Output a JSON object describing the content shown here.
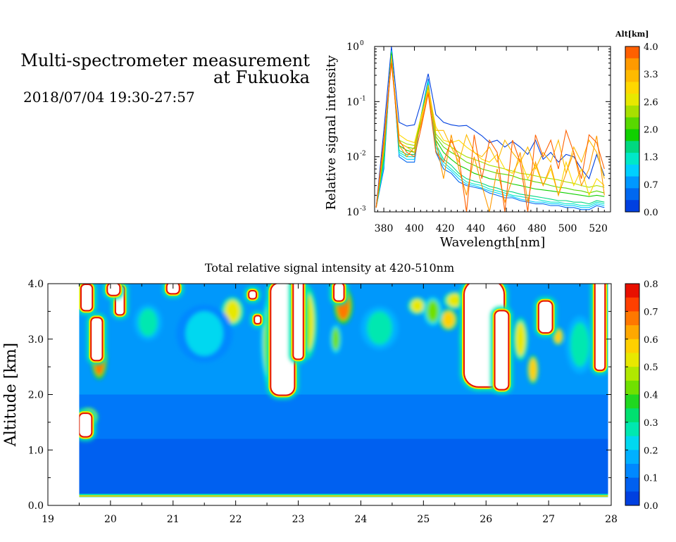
{
  "header": {
    "title_line1": "Multi-spectrometer measurement",
    "title_line2": "at Fukuoka",
    "subtitle": "2018/07/04 19:30-27:57"
  },
  "chart_data": [
    {
      "type": "line",
      "xlabel": "Wavelength[nm]",
      "ylabel": "Relative signal intensity",
      "xlim": [
        374,
        528
      ],
      "ylim": [
        0.001,
        1
      ],
      "yscale": "log",
      "x_ticks": [
        380,
        400,
        420,
        440,
        460,
        480,
        500,
        520
      ],
      "y_ticks": [
        {
          "mantissa": "10",
          "exp": "0",
          "value": 1
        },
        {
          "mantissa": "10",
          "exp": "-1",
          "value": 0.1
        },
        {
          "mantissa": "10",
          "exp": "-2",
          "value": 0.01
        },
        {
          "mantissa": "10",
          "exp": "-3",
          "value": 0.001
        }
      ],
      "colorbar": {
        "label": "Alt[km]",
        "ticks": [
          "4.0",
          "3.3",
          "2.6",
          "2.0",
          "1.3",
          "0.7",
          "0.0"
        ],
        "colors": [
          "#ff6000",
          "#ff9a00",
          "#ffba00",
          "#ffd800",
          "#e8e800",
          "#a8e000",
          "#58d800",
          "#10d000",
          "#00d880",
          "#00e8c8",
          "#00d0ff",
          "#0098ff",
          "#0068f0",
          "#0040e0"
        ]
      },
      "x": [
        375,
        380,
        385,
        390,
        395,
        400,
        404,
        409,
        414,
        419,
        424,
        429,
        434,
        439,
        444,
        449,
        454,
        459,
        464,
        469,
        474,
        479,
        484,
        489,
        494,
        499,
        504,
        509,
        514,
        519,
        524
      ],
      "series": [
        {
          "color": "#0040e0",
          "values": [
            0.0012,
            0.03,
            1.0,
            0.042,
            0.036,
            0.038,
            0.09,
            0.32,
            0.058,
            0.042,
            0.038,
            0.036,
            0.037,
            0.03,
            0.024,
            0.018,
            0.02,
            0.015,
            0.019,
            0.015,
            0.011,
            0.02,
            0.009,
            0.012,
            0.008,
            0.011,
            0.01,
            0.006,
            0.004,
            0.011,
            0.0045
          ]
        },
        {
          "color": "#0068f0",
          "values": [
            0.0012,
            0.006,
            0.85,
            0.01,
            0.008,
            0.008,
            0.05,
            0.26,
            0.012,
            0.006,
            0.005,
            0.0035,
            0.003,
            0.0028,
            0.0026,
            0.0022,
            0.002,
            0.0018,
            0.0018,
            0.0016,
            0.0015,
            0.0014,
            0.0014,
            0.0013,
            0.0013,
            0.0012,
            0.0012,
            0.0011,
            0.0011,
            0.0013,
            0.0012
          ]
        },
        {
          "color": "#00d0ff",
          "values": [
            0.0012,
            0.007,
            0.85,
            0.011,
            0.009,
            0.009,
            0.05,
            0.24,
            0.013,
            0.007,
            0.0055,
            0.004,
            0.0032,
            0.003,
            0.0027,
            0.0024,
            0.0022,
            0.002,
            0.0019,
            0.0017,
            0.0016,
            0.0015,
            0.0015,
            0.0014,
            0.0014,
            0.0013,
            0.0013,
            0.0012,
            0.0012,
            0.0014,
            0.0013
          ]
        },
        {
          "color": "#00e8c8",
          "values": [
            0.0012,
            0.008,
            0.82,
            0.012,
            0.01,
            0.01,
            0.05,
            0.22,
            0.015,
            0.008,
            0.006,
            0.0045,
            0.0035,
            0.0032,
            0.003,
            0.0026,
            0.0024,
            0.0022,
            0.002,
            0.0019,
            0.0018,
            0.0017,
            0.0016,
            0.0015,
            0.0015,
            0.0014,
            0.0014,
            0.0013,
            0.0013,
            0.0015,
            0.0014
          ]
        },
        {
          "color": "#00d880",
          "values": [
            0.0012,
            0.009,
            0.8,
            0.013,
            0.011,
            0.011,
            0.05,
            0.2,
            0.017,
            0.009,
            0.007,
            0.005,
            0.004,
            0.0036,
            0.0033,
            0.0029,
            0.0027,
            0.0024,
            0.0023,
            0.0021,
            0.002,
            0.0019,
            0.0018,
            0.0017,
            0.0016,
            0.0016,
            0.0015,
            0.0015,
            0.0014,
            0.0016,
            0.0015
          ]
        },
        {
          "color": "#10d000",
          "values": [
            0.0012,
            0.011,
            0.75,
            0.016,
            0.013,
            0.012,
            0.05,
            0.19,
            0.02,
            0.012,
            0.009,
            0.007,
            0.006,
            0.005,
            0.0045,
            0.004,
            0.0038,
            0.0035,
            0.0032,
            0.003,
            0.0028,
            0.0026,
            0.0025,
            0.0024,
            0.0023,
            0.0022,
            0.0021,
            0.002,
            0.0019,
            0.002,
            0.0019
          ]
        },
        {
          "color": "#58d800",
          "values": [
            0.0012,
            0.012,
            0.7,
            0.018,
            0.015,
            0.014,
            0.05,
            0.18,
            0.023,
            0.015,
            0.012,
            0.01,
            0.008,
            0.007,
            0.006,
            0.0055,
            0.005,
            0.0048,
            0.0045,
            0.004,
            0.0038,
            0.0035,
            0.0033,
            0.003,
            0.0028,
            0.0027,
            0.0025,
            0.0024,
            0.0022,
            0.0024,
            0.0022
          ]
        },
        {
          "color": "#a8e000",
          "values": [
            0.0012,
            0.012,
            0.68,
            0.02,
            0.017,
            0.016,
            0.05,
            0.17,
            0.026,
            0.018,
            0.015,
            0.012,
            0.01,
            0.009,
            0.008,
            0.007,
            0.0065,
            0.006,
            0.0055,
            0.005,
            0.0048,
            0.0045,
            0.0042,
            0.004,
            0.0038,
            0.0035,
            0.0033,
            0.003,
            0.0028,
            0.003,
            0.0028
          ]
        },
        {
          "color": "#ffd800",
          "values": [
            0.0012,
            0.015,
            0.6,
            0.025,
            0.02,
            0.018,
            0.05,
            0.16,
            0.035,
            0.02,
            0.018,
            0.02,
            0.015,
            0.012,
            0.009,
            0.008,
            0.011,
            0.006,
            0.005,
            0.009,
            0.004,
            0.007,
            0.003,
            0.006,
            0.002,
            0.008,
            0.003,
            0.006,
            0.002,
            0.004,
            0.003
          ]
        },
        {
          "color": "#ffba00",
          "values": [
            0.0012,
            0.02,
            0.6,
            0.018,
            0.015,
            0.012,
            0.04,
            0.2,
            0.03,
            0.03,
            0.015,
            0.008,
            0.025,
            0.012,
            0.01,
            0.015,
            0.008,
            0.02,
            0.012,
            0.008,
            0.015,
            0.006,
            0.012,
            0.008,
            0.02,
            0.005,
            0.015,
            0.008,
            0.02,
            0.012,
            0.004
          ]
        },
        {
          "color": "#ff9a00",
          "values": [
            0.0012,
            0.015,
            0.55,
            0.016,
            0.01,
            0.015,
            0.035,
            0.15,
            0.02,
            0.004,
            0.025,
            0.006,
            0.002,
            0.01,
            0.003,
            0.001,
            0.006,
            0.0015,
            0.004,
            0.012,
            0.0015,
            0.008,
            0.003,
            0.007,
            0.002,
            0.005,
            0.012,
            0.003,
            0.006,
            0.024,
            0.002
          ]
        },
        {
          "color": "#ff6000",
          "values": [
            0.0012,
            0.02,
            0.5,
            0.02,
            0.012,
            0.01,
            0.03,
            0.14,
            0.012,
            0.008,
            0.02,
            0.01,
            0.001,
            0.025,
            0.004,
            0.02,
            0.012,
            0.001,
            0.02,
            0.008,
            0.001,
            0.025,
            0.01,
            0.02,
            0.006,
            0.03,
            0.012,
            0.004,
            0.025,
            0.018,
            0.006
          ]
        }
      ]
    },
    {
      "type": "heatmap",
      "title": "Total relative signal intensity at 420-510nm",
      "xlabel": "",
      "ylabel": "Altitude [km]",
      "xlim": [
        19,
        28
      ],
      "ylim": [
        0,
        4
      ],
      "x_ticks": [
        "19",
        "20",
        "21",
        "22",
        "23",
        "24",
        "25",
        "26",
        "27",
        "28"
      ],
      "y_ticks": [
        "0.0",
        "1.0",
        "2.0",
        "3.0",
        "4.0"
      ],
      "data_xrange": [
        19.5,
        27.95
      ],
      "data_yrange": [
        0.15,
        4.0
      ],
      "background_value": 0.08,
      "surface_band": {
        "y": 0.17,
        "value": 0.3
      },
      "colorbar": {
        "ticks": [
          "0.8",
          "0.7",
          "0.6",
          "0.5",
          "0.4",
          "0.3",
          "0.2",
          "0.1",
          "0.0"
        ],
        "colors": [
          "#0040e0",
          "#0060f0",
          "#0088ff",
          "#00b0ff",
          "#00d8f0",
          "#00e8b0",
          "#00e070",
          "#20d820",
          "#70e000",
          "#b0e800",
          "#e8e800",
          "#ffd000",
          "#ffa800",
          "#ff7800",
          "#ff4000",
          "#e81000"
        ]
      },
      "clouds": [
        {
          "x": 19.78,
          "y": 3.0,
          "w": 0.16,
          "h": 0.75
        },
        {
          "x": 19.62,
          "y": 3.75,
          "w": 0.16,
          "h": 0.45
        },
        {
          "x": 20.15,
          "y": 3.7,
          "w": 0.12,
          "h": 0.5
        },
        {
          "x": 20.05,
          "y": 3.9,
          "w": 0.18,
          "h": 0.2
        },
        {
          "x": 19.6,
          "y": 1.45,
          "w": 0.18,
          "h": 0.4
        },
        {
          "x": 21.0,
          "y": 3.92,
          "w": 0.18,
          "h": 0.18
        },
        {
          "x": 22.27,
          "y": 3.8,
          "w": 0.1,
          "h": 0.12
        },
        {
          "x": 22.35,
          "y": 3.35,
          "w": 0.08,
          "h": 0.12
        },
        {
          "x": 22.75,
          "y": 3.0,
          "w": 0.36,
          "h": 2.0
        },
        {
          "x": 23.0,
          "y": 3.35,
          "w": 0.14,
          "h": 1.4
        },
        {
          "x": 23.65,
          "y": 3.85,
          "w": 0.14,
          "h": 0.3
        },
        {
          "x": 25.97,
          "y": 3.1,
          "w": 0.62,
          "h": 1.9
        },
        {
          "x": 26.25,
          "y": 2.8,
          "w": 0.2,
          "h": 1.4
        },
        {
          "x": 26.95,
          "y": 3.4,
          "w": 0.2,
          "h": 0.55
        },
        {
          "x": 27.82,
          "y": 3.3,
          "w": 0.14,
          "h": 1.7
        }
      ],
      "hotspots": [
        {
          "x": 19.82,
          "y": 2.6,
          "rx": 0.08,
          "ry": 0.25,
          "v": 0.7
        },
        {
          "x": 19.65,
          "y": 1.6,
          "rx": 0.1,
          "ry": 0.12,
          "v": 0.6
        },
        {
          "x": 21.95,
          "y": 3.5,
          "rx": 0.12,
          "ry": 0.2,
          "v": 0.5
        },
        {
          "x": 22.55,
          "y": 2.95,
          "rx": 0.1,
          "ry": 0.6,
          "v": 0.45
        },
        {
          "x": 23.15,
          "y": 3.3,
          "rx": 0.1,
          "ry": 0.5,
          "v": 0.5
        },
        {
          "x": 23.72,
          "y": 3.6,
          "rx": 0.1,
          "ry": 0.25,
          "v": 0.7
        },
        {
          "x": 23.6,
          "y": 3.0,
          "rx": 0.06,
          "ry": 0.2,
          "v": 0.4
        },
        {
          "x": 24.9,
          "y": 3.6,
          "rx": 0.1,
          "ry": 0.12,
          "v": 0.5
        },
        {
          "x": 25.4,
          "y": 3.35,
          "rx": 0.1,
          "ry": 0.15,
          "v": 0.55
        },
        {
          "x": 25.5,
          "y": 3.7,
          "rx": 0.12,
          "ry": 0.12,
          "v": 0.5
        },
        {
          "x": 25.75,
          "y": 3.0,
          "rx": 0.1,
          "ry": 0.25,
          "v": 0.5
        },
        {
          "x": 26.55,
          "y": 3.0,
          "rx": 0.08,
          "ry": 0.3,
          "v": 0.5
        },
        {
          "x": 26.75,
          "y": 2.45,
          "rx": 0.06,
          "ry": 0.2,
          "v": 0.6
        },
        {
          "x": 27.15,
          "y": 3.05,
          "rx": 0.06,
          "ry": 0.12,
          "v": 0.6
        },
        {
          "x": 25.15,
          "y": 3.5,
          "rx": 0.1,
          "ry": 0.2,
          "v": 0.4
        },
        {
          "x": 20.6,
          "y": 3.3,
          "rx": 0.15,
          "ry": 0.25,
          "v": 0.3
        },
        {
          "x": 24.3,
          "y": 3.2,
          "rx": 0.2,
          "ry": 0.3,
          "v": 0.3
        },
        {
          "x": 21.5,
          "y": 3.1,
          "rx": 0.3,
          "ry": 0.4,
          "v": 0.22
        },
        {
          "x": 27.5,
          "y": 2.9,
          "rx": 0.15,
          "ry": 0.4,
          "v": 0.3
        }
      ]
    }
  ]
}
